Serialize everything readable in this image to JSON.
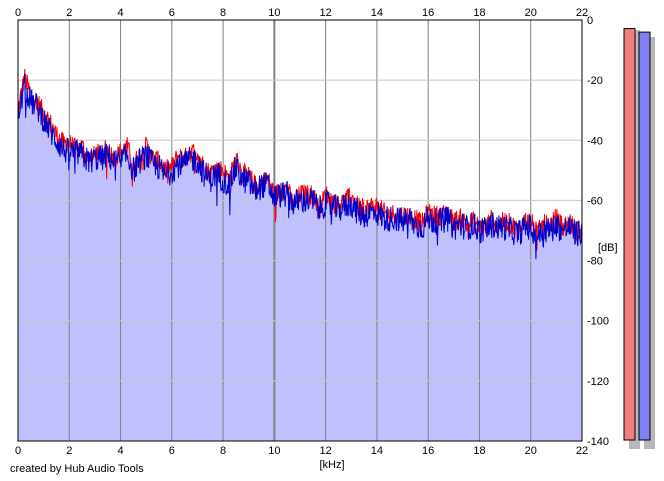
{
  "credit": "created by Hub Audio Tools",
  "colors": {
    "background": "#ffffff",
    "plot_fill": "#c0c0ff",
    "grid_major": "#808080",
    "grid_minor": "#c8c8c8",
    "left_channel": "#ff0000",
    "right_channel": "#0000cc",
    "meter_left": "#f08080",
    "meter_right": "#8080f0"
  },
  "meters": {
    "left_level_db": -3,
    "right_level_db": -6
  },
  "chart_data": {
    "type": "area",
    "xlabel": "[kHz]",
    "ylabel": "[dB]",
    "xlim": [
      0,
      22
    ],
    "ylim": [
      -140,
      0
    ],
    "x_ticks": [
      "0",
      "2",
      "4",
      "6",
      "8",
      "10",
      "12",
      "14",
      "16",
      "18",
      "20",
      "22"
    ],
    "y_ticks": [
      "0",
      "-20",
      "-40",
      "-60",
      "-80",
      "-100",
      "-120",
      "-140"
    ],
    "grid": true,
    "series": [
      {
        "color": "red",
        "x": [
          0,
          0.25,
          0.5,
          0.75,
          1,
          1.25,
          1.5,
          1.75,
          2,
          2.25,
          2.5,
          2.75,
          3,
          3.25,
          3.5,
          3.75,
          4,
          4.25,
          4.5,
          4.75,
          5,
          5.25,
          5.5,
          5.75,
          6,
          6.25,
          6.5,
          6.75,
          7,
          7.25,
          7.5,
          7.75,
          8,
          8.25,
          8.5,
          8.75,
          9,
          9.25,
          9.5,
          9.75,
          10,
          10.25,
          10.5,
          10.75,
          11,
          11.25,
          11.5,
          11.75,
          12,
          12.25,
          12.5,
          12.75,
          13,
          13.25,
          13.5,
          13.75,
          14,
          14.25,
          14.5,
          14.75,
          15,
          15.25,
          15.5,
          15.75,
          16,
          16.25,
          16.5,
          16.75,
          17,
          17.25,
          17.5,
          17.75,
          18,
          18.25,
          18.5,
          18.75,
          19,
          19.25,
          19.5,
          19.75,
          20,
          20.25,
          20.5,
          20.75,
          21,
          21.25,
          21.5,
          21.75,
          22
        ],
        "values": [
          -30,
          -19,
          -25,
          -27,
          -31,
          -34,
          -38,
          -41,
          -41,
          -43,
          -42,
          -46,
          -45,
          -44,
          -43,
          -46,
          -44,
          -42,
          -48,
          -45,
          -42,
          -46,
          -47,
          -50,
          -49,
          -45,
          -46,
          -44,
          -44,
          -49,
          -51,
          -49,
          -50,
          -53,
          -46,
          -51,
          -52,
          -55,
          -54,
          -53,
          -58,
          -57,
          -56,
          -62,
          -58,
          -58,
          -58,
          -63,
          -58,
          -60,
          -62,
          -60,
          -59,
          -62,
          -63,
          -62,
          -62,
          -64,
          -65,
          -64,
          -65,
          -65,
          -66,
          -68,
          -64,
          -65,
          -65,
          -64,
          -67,
          -66,
          -68,
          -67,
          -69,
          -69,
          -66,
          -68,
          -67,
          -68,
          -70,
          -67,
          -67,
          -71,
          -68,
          -68,
          -66,
          -69,
          -67,
          -70,
          -70
        ]
      },
      {
        "color": "blue",
        "x": [
          0,
          0.25,
          0.5,
          0.75,
          1,
          1.25,
          1.5,
          1.75,
          2,
          2.25,
          2.5,
          2.75,
          3,
          3.25,
          3.5,
          3.75,
          4,
          4.25,
          4.5,
          4.75,
          5,
          5.25,
          5.5,
          5.75,
          6,
          6.25,
          6.5,
          6.75,
          7,
          7.25,
          7.5,
          7.75,
          8,
          8.25,
          8.5,
          8.75,
          9,
          9.25,
          9.5,
          9.75,
          10,
          10.25,
          10.5,
          10.75,
          11,
          11.25,
          11.5,
          11.75,
          12,
          12.25,
          12.5,
          12.75,
          13,
          13.25,
          13.5,
          13.75,
          14,
          14.25,
          14.5,
          14.75,
          15,
          15.25,
          15.5,
          15.75,
          16,
          16.25,
          16.5,
          16.75,
          17,
          17.25,
          17.5,
          17.75,
          18,
          18.25,
          18.5,
          18.75,
          19,
          19.25,
          19.5,
          19.75,
          20,
          20.25,
          20.5,
          20.75,
          21,
          21.25,
          21.5,
          21.75,
          22
        ],
        "values": [
          -32,
          -22,
          -27,
          -29,
          -33,
          -37,
          -40,
          -43,
          -44,
          -44,
          -45,
          -47,
          -46,
          -46,
          -45,
          -47,
          -47,
          -45,
          -50,
          -47,
          -45,
          -48,
          -49,
          -52,
          -50,
          -48,
          -48,
          -46,
          -47,
          -51,
          -53,
          -51,
          -53,
          -55,
          -49,
          -53,
          -54,
          -57,
          -55,
          -55,
          -59,
          -58,
          -58,
          -61,
          -60,
          -60,
          -60,
          -63,
          -61,
          -62,
          -63,
          -62,
          -61,
          -64,
          -65,
          -64,
          -64,
          -66,
          -66,
          -66,
          -67,
          -66,
          -68,
          -69,
          -66,
          -67,
          -67,
          -66,
          -69,
          -68,
          -69,
          -68,
          -70,
          -70,
          -68,
          -69,
          -69,
          -70,
          -71,
          -69,
          -69,
          -72,
          -70,
          -70,
          -68,
          -70,
          -69,
          -71,
          -71
        ]
      }
    ]
  }
}
